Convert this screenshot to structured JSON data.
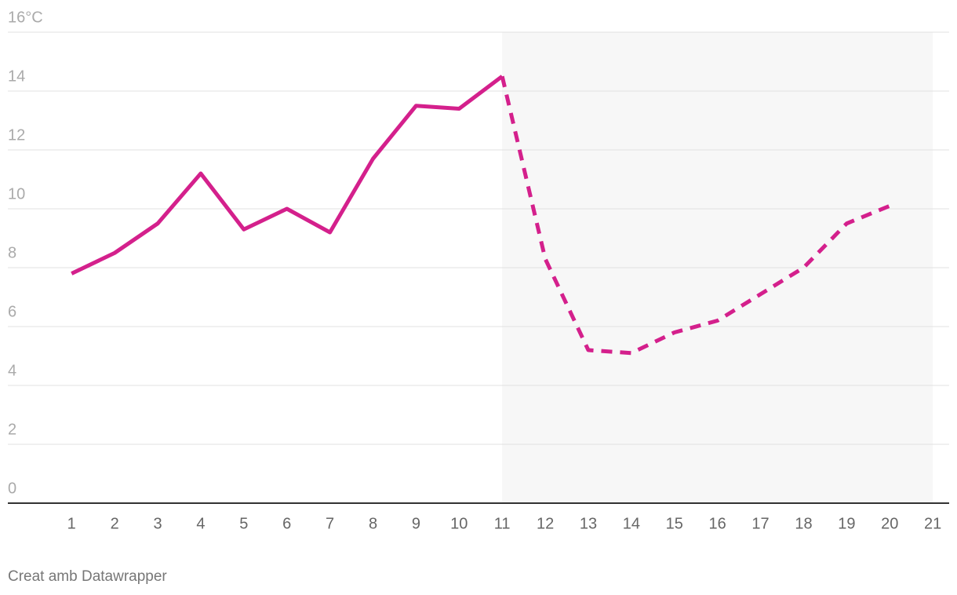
{
  "chart_data": {
    "type": "line",
    "x": [
      1,
      2,
      3,
      4,
      5,
      6,
      7,
      8,
      9,
      10,
      11,
      12,
      13,
      14,
      15,
      16,
      17,
      18,
      19,
      20,
      21
    ],
    "series": [
      {
        "color": "#d4208c",
        "dashed": false,
        "values": [
          7.8,
          8.5,
          9.5,
          11.2,
          9.3,
          10.0,
          9.2,
          11.7,
          13.5,
          13.4,
          14.5,
          null,
          null,
          null,
          null,
          null,
          null,
          null,
          null,
          null,
          null
        ]
      },
      {
        "color": "#d4208c",
        "dashed": true,
        "values": [
          null,
          null,
          null,
          null,
          null,
          null,
          null,
          null,
          null,
          null,
          14.5,
          8.3,
          5.2,
          5.1,
          5.8,
          6.2,
          7.1,
          8.0,
          9.5,
          10.1,
          null
        ]
      }
    ],
    "shade": [
      11,
      21
    ],
    "xlim": [
      -0.48,
      21.38
    ],
    "xticks": [
      1,
      2,
      3,
      4,
      5,
      6,
      7,
      8,
      9,
      10,
      11,
      12,
      13,
      14,
      15,
      16,
      17,
      18,
      19,
      20,
      21
    ],
    "ylim": [
      0,
      16
    ],
    "yticks": [
      0,
      2,
      4,
      6,
      8,
      10,
      12,
      14,
      {
        "value": 16,
        "label": "16°C"
      }
    ],
    "grid": true,
    "footer": "Creat amb Datawrapper"
  }
}
